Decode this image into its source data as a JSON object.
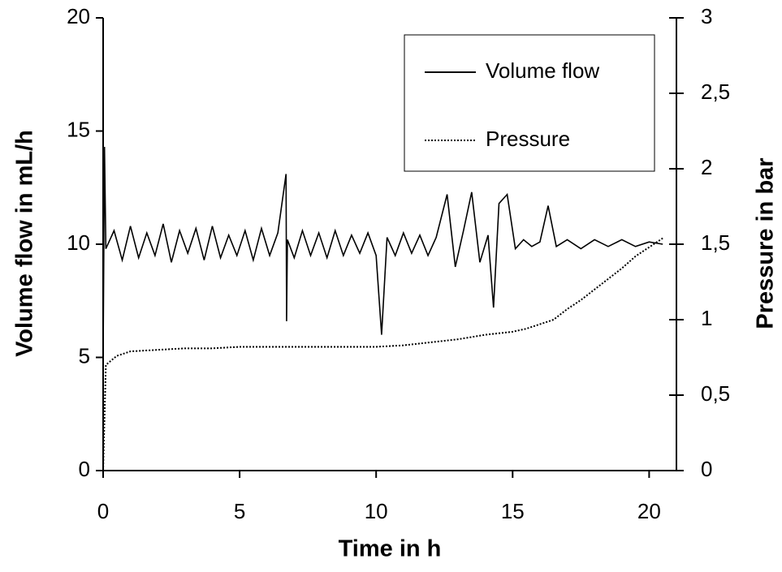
{
  "chart_data": {
    "type": "line",
    "x_label": "Time in h",
    "y_label": "Volume flow in mL/h",
    "y2_label": "Pressure in bar",
    "xlim": [
      0,
      21
    ],
    "xticks": [
      0,
      5,
      10,
      15,
      20
    ],
    "ylim": [
      0,
      20
    ],
    "yticks": [
      0,
      5,
      10,
      15,
      20
    ],
    "y2lim": [
      0,
      3
    ],
    "y2ticks": [
      0,
      {
        "value": 0.5,
        "label": "0,5"
      },
      1,
      {
        "value": 1.5,
        "label": "1,5"
      },
      2,
      {
        "value": 2.5,
        "label": "2,5"
      },
      3
    ],
    "legend": "upper right",
    "series": [
      {
        "name": "Volume flow",
        "color": "#000000",
        "line_style": "solid",
        "x": [
          0,
          0.05,
          0.1,
          0.4,
          0.7,
          1.0,
          1.3,
          1.6,
          1.9,
          2.2,
          2.5,
          2.8,
          3.1,
          3.4,
          3.7,
          4.0,
          4.3,
          4.6,
          4.9,
          5.2,
          5.5,
          5.8,
          6.1,
          6.4,
          6.7,
          6.72,
          6.75,
          7.0,
          7.3,
          7.6,
          7.9,
          8.2,
          8.5,
          8.8,
          9.1,
          9.4,
          9.7,
          10.0,
          10.2,
          10.4,
          10.7,
          11.0,
          11.3,
          11.6,
          11.9,
          12.2,
          12.6,
          12.9,
          13.2,
          13.5,
          13.8,
          14.1,
          14.3,
          14.5,
          14.8,
          15.1,
          15.4,
          15.7,
          16.0,
          16.3,
          16.6,
          17.0,
          17.5,
          18.0,
          18.5,
          19.0,
          19.5,
          20.0,
          20.5
        ],
        "values": [
          5,
          14.3,
          9.8,
          10.6,
          9.3,
          10.8,
          9.4,
          10.5,
          9.5,
          10.9,
          9.2,
          10.6,
          9.6,
          10.7,
          9.3,
          10.8,
          9.4,
          10.4,
          9.5,
          10.6,
          9.3,
          10.7,
          9.5,
          10.5,
          13.1,
          6.6,
          10.2,
          9.4,
          10.6,
          9.5,
          10.5,
          9.4,
          10.6,
          9.5,
          10.4,
          9.6,
          10.5,
          9.5,
          6.0,
          10.3,
          9.5,
          10.5,
          9.6,
          10.4,
          9.5,
          10.3,
          12.2,
          9.0,
          10.6,
          12.3,
          9.2,
          10.4,
          7.2,
          11.8,
          12.2,
          9.8,
          10.2,
          9.9,
          10.1,
          11.7,
          9.9,
          10.2,
          9.8,
          10.2,
          9.9,
          10.2,
          9.9,
          10.1,
          10.0
        ]
      },
      {
        "name": "Pressure",
        "color": "#000000",
        "line_style": "dotted",
        "axis": "y2",
        "x": [
          0,
          0.1,
          0.5,
          1,
          2,
          3,
          4,
          5,
          6,
          7,
          8,
          9,
          10,
          11,
          12,
          13,
          14,
          15,
          15.5,
          16,
          16.5,
          17,
          17.5,
          18,
          18.5,
          19,
          19.5,
          20,
          20.5
        ],
        "values": [
          0,
          0.7,
          0.76,
          0.79,
          0.8,
          0.81,
          0.81,
          0.82,
          0.82,
          0.82,
          0.82,
          0.82,
          0.82,
          0.83,
          0.85,
          0.87,
          0.9,
          0.92,
          0.94,
          0.97,
          1.0,
          1.07,
          1.13,
          1.2,
          1.27,
          1.34,
          1.42,
          1.48,
          1.54
        ]
      }
    ]
  }
}
